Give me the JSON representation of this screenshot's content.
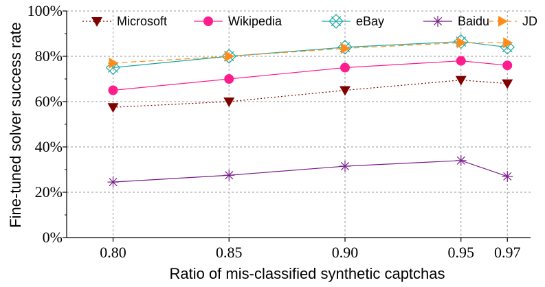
{
  "chart_data": {
    "type": "line",
    "xlabel": "Ratio of mis-classified synthetic captchas",
    "ylabel": "Fine-tuned solver success rate",
    "x": [
      0.8,
      0.85,
      0.9,
      0.95,
      0.97
    ],
    "x_tick_labels": [
      "0.80",
      "0.85",
      "0.90",
      "0.95",
      "0.97"
    ],
    "y_ticks": [
      0,
      20,
      40,
      60,
      80,
      100
    ],
    "y_tick_labels": [
      "0%",
      "20%",
      "40%",
      "60%",
      "80%",
      "100%"
    ],
    "ylim": [
      0,
      100
    ],
    "grid": true,
    "legend_position": "top",
    "series": [
      {
        "name": "Microsoft",
        "values": [
          57.5,
          60,
          65,
          69.5,
          68
        ],
        "color": "#800000",
        "dash": "dotted",
        "marker": "triangle-down"
      },
      {
        "name": "Wikipedia",
        "values": [
          65,
          70,
          75,
          78,
          76
        ],
        "color": "#ff1c8c",
        "dash": "solid",
        "marker": "circle"
      },
      {
        "name": "eBay",
        "values": [
          75,
          80,
          84,
          86.5,
          84
        ],
        "color": "#1aa8a0",
        "dash": "solid",
        "marker": "crossed-x"
      },
      {
        "name": "Baidu",
        "values": [
          24.5,
          27.5,
          31.5,
          34,
          27
        ],
        "color": "#7a1e8a",
        "dash": "solid",
        "marker": "star"
      },
      {
        "name": "JD",
        "values": [
          77,
          80,
          83.5,
          86,
          86
        ],
        "color": "#ff8c1a",
        "dash": "dashed",
        "marker": "triangle-right"
      }
    ]
  }
}
